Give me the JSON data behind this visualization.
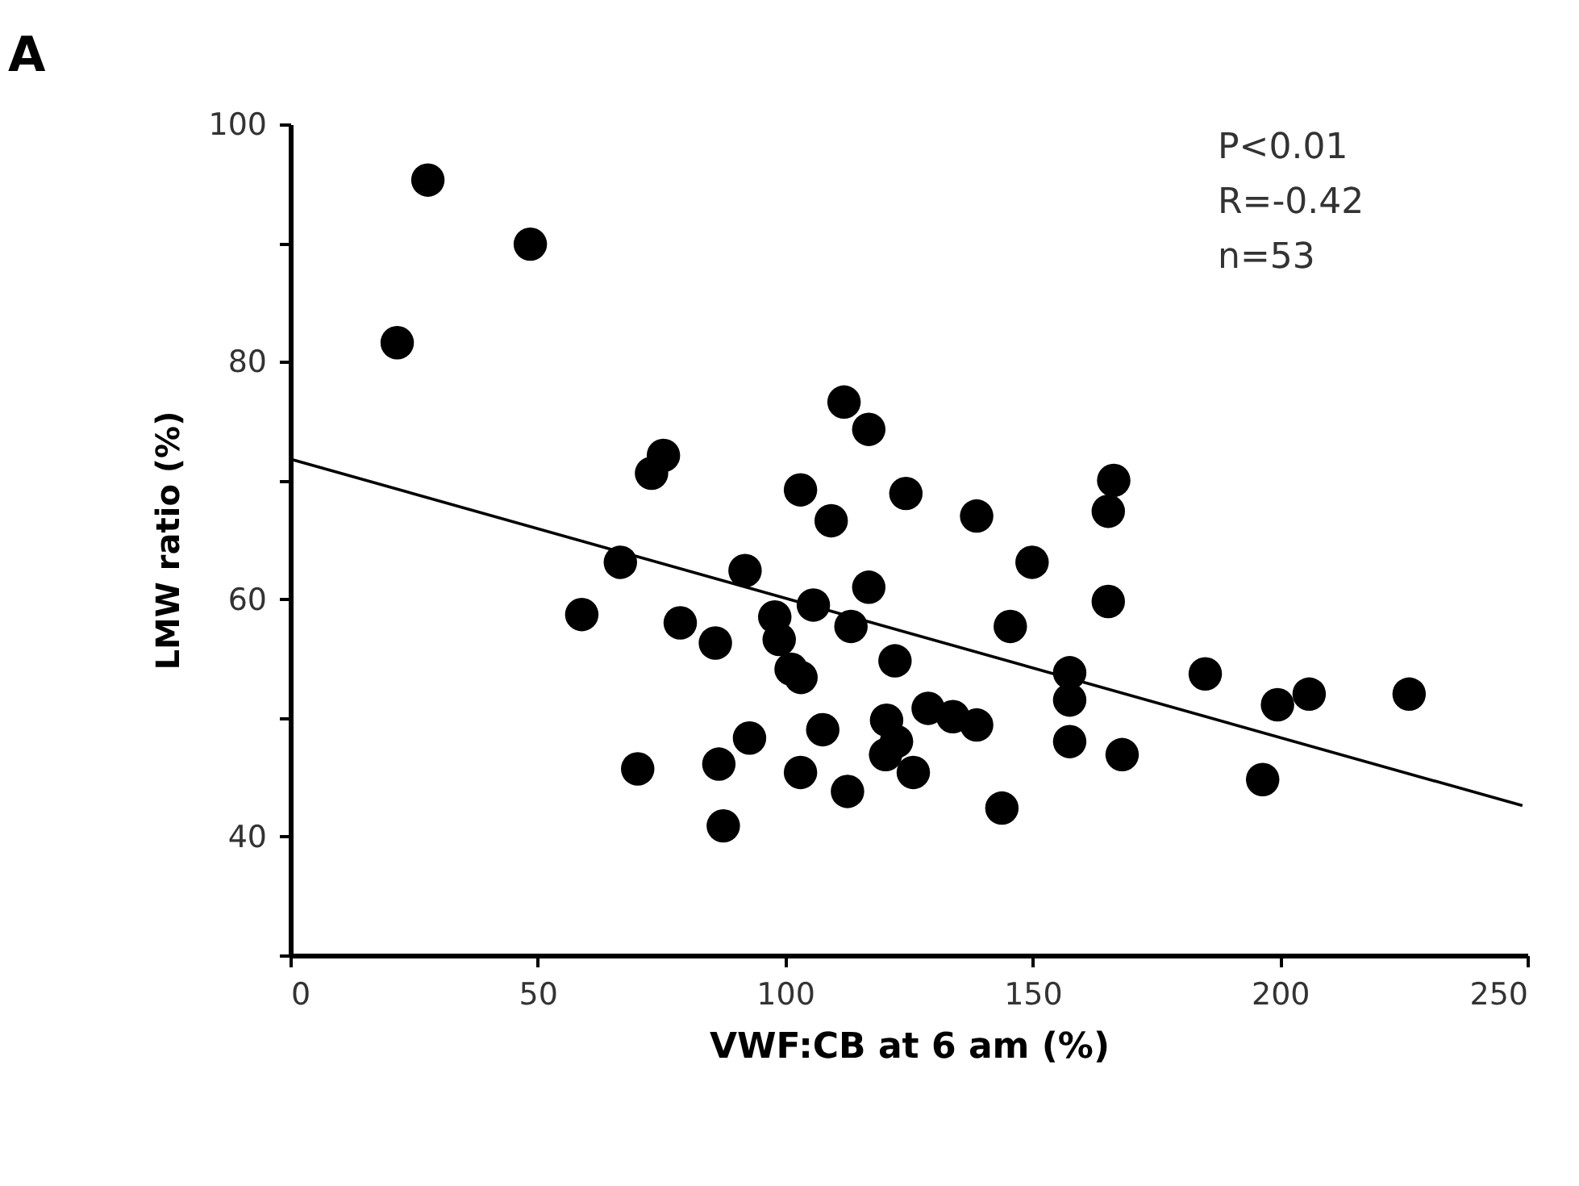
{
  "chart_data": {
    "type": "scatter",
    "title": "A",
    "xlabel": "VWF:CB at 6 am (%)",
    "ylabel": "LMW ratio (%)",
    "annotations": [
      "P<0.01",
      "R=-0.42",
      "n=53"
    ],
    "xlim": [
      0,
      250
    ],
    "xticks": [
      0,
      50,
      100,
      150,
      200,
      250
    ],
    "ylim": [
      30,
      100
    ],
    "yticks": [
      {
        "value": 30,
        "label": null
      },
      40,
      {
        "value": 50,
        "label": null
      },
      60,
      {
        "value": 70,
        "label": null
      },
      80,
      {
        "value": 90,
        "label": null
      },
      100
    ],
    "grid": false,
    "series": [
      {
        "color": "#000000",
        "marker": "circle",
        "x": [
          27.8,
          48.5,
          21.6,
          111.9,
          116.9,
          75.4,
          73.0,
          103.1,
          109.3,
          124.4,
          66.7,
          91.9,
          116.9,
          58.9,
          78.8,
          105.7,
          97.9,
          113.3,
          85.9,
          98.8,
          122.2,
          101.2,
          103.2,
          128.9,
          120.5,
          107.6,
          92.8,
          122.5,
          120.3,
          70.2,
          86.6,
          103.1,
          125.9,
          112.6,
          87.5,
          138.7,
          166.4,
          165.3,
          149.9,
          165.3,
          145.5,
          157.5,
          157.5,
          184.9,
          199.5,
          205.9,
          226.1,
          133.9,
          138.7,
          157.5,
          168.1,
          143.8,
          196.5
        ],
        "values": [
          95.3,
          89.9,
          81.6,
          76.6,
          74.3,
          72.1,
          70.6,
          69.2,
          66.6,
          68.9,
          63.1,
          62.4,
          61.0,
          58.7,
          58.0,
          59.5,
          58.5,
          57.7,
          56.3,
          56.6,
          54.8,
          54.1,
          53.4,
          50.8,
          49.8,
          49.0,
          48.3,
          48.0,
          46.9,
          45.7,
          46.1,
          45.4,
          45.4,
          43.8,
          40.9,
          67.0,
          70.0,
          67.4,
          63.1,
          59.8,
          57.7,
          53.8,
          51.5,
          53.7,
          51.1,
          52.0,
          52.0,
          50.1,
          49.4,
          48.0,
          46.9,
          42.4,
          44.8
        ]
      },
      {
        "type": "line",
        "color": "#000000",
        "marker": "none",
        "line_style": "solid",
        "x": [
          0,
          249
        ],
        "values": [
          71.8,
          42.6
        ]
      }
    ]
  }
}
